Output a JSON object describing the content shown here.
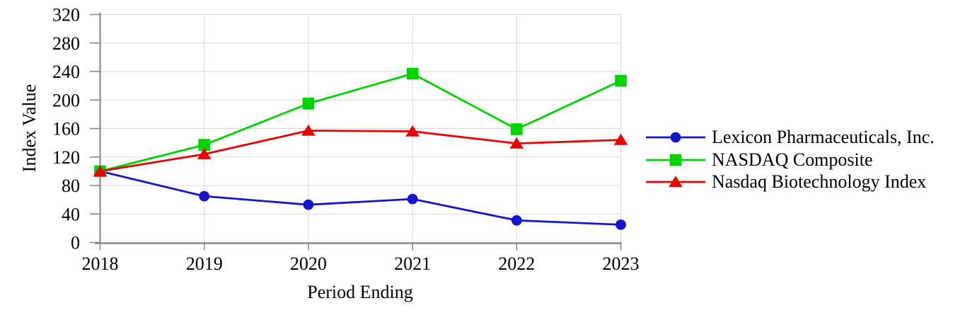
{
  "chart_data": {
    "type": "line",
    "title": "",
    "xlabel": "Period Ending",
    "ylabel": "Index Value",
    "categories": [
      "2018",
      "2019",
      "2020",
      "2021",
      "2022",
      "2023"
    ],
    "series": [
      {
        "name": "Lexicon Pharmaceuticals, Inc.",
        "color": "#1515CD",
        "marker": "circle",
        "values": [
          100,
          65,
          53,
          61,
          31,
          25
        ]
      },
      {
        "name": "NASDAQ Composite",
        "color": "#00D400",
        "marker": "square",
        "values": [
          100,
          137,
          195,
          237,
          159,
          227
        ]
      },
      {
        "name": "Nasdaq Biotechnology Index",
        "color": "#EE0000",
        "marker": "triangle",
        "values": [
          100,
          124,
          157,
          156,
          139,
          144
        ]
      }
    ],
    "ylim": [
      0,
      320
    ],
    "ytick_step": 40,
    "grid": true,
    "legend_position": "right",
    "colors": {
      "grid": "#D9D9D9",
      "axis": "#808080",
      "text": "#000000",
      "background": "#FFFFFF"
    }
  }
}
